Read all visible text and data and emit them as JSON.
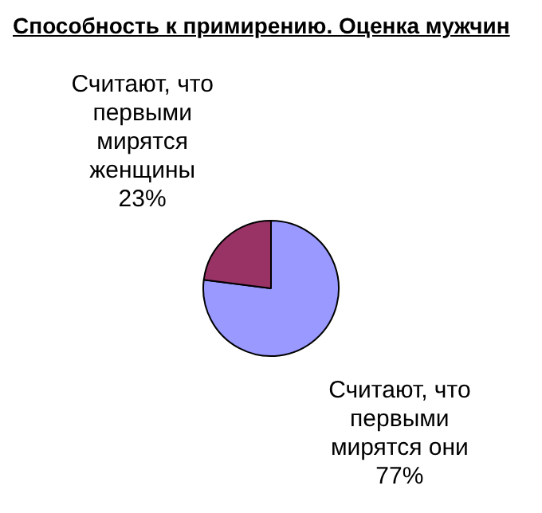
{
  "chart_data": {
    "type": "pie",
    "title": "Способность к примирению. Оценка мужчин",
    "categories": [
      "Считают, что первыми мирятся они",
      "Считают, что первыми мирятся женщины"
    ],
    "values": [
      77,
      23
    ],
    "colors": [
      "#9999ff",
      "#993366"
    ],
    "value_labels": [
      "77%",
      "23%"
    ],
    "legend": false
  }
}
